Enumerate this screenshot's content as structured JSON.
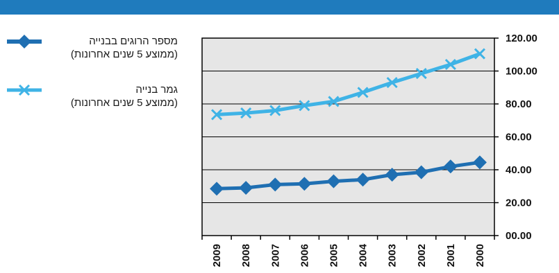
{
  "chart_data": {
    "type": "line",
    "title": "",
    "xlabel": "",
    "ylabel": "",
    "categories": [
      "2009",
      "2008",
      "2007",
      "2006",
      "2005",
      "2004",
      "2003",
      "2002",
      "2001",
      "2000"
    ],
    "y_ticks": [
      "00.00",
      "20.00",
      "40.00",
      "60.00",
      "80.00",
      "100.00",
      "120.00"
    ],
    "ylim": [
      0,
      120
    ],
    "grid": true,
    "legend_position": "left",
    "series": [
      {
        "name_line1": "מספר הרוגים בבנייה",
        "name_line2": "(ממוצע 5 שנים אחרונות)",
        "marker": "diamond",
        "color": "#1f6fb2",
        "values": [
          28.5,
          29,
          31,
          31.5,
          33,
          34,
          37,
          38.5,
          42,
          44.5
        ]
      },
      {
        "name_line1": "גמר בנייה",
        "name_line2": "(ממוצע 5 שנים אחרונות)",
        "marker": "x",
        "color": "#3fb3e6",
        "values": [
          73.5,
          74.5,
          76,
          79,
          81.5,
          87,
          93,
          98.5,
          104,
          110.5
        ]
      }
    ],
    "colors": {
      "plot_bg": "#e6e6e6",
      "top_bar": "#1f7bbd",
      "grid": "#000000"
    }
  }
}
